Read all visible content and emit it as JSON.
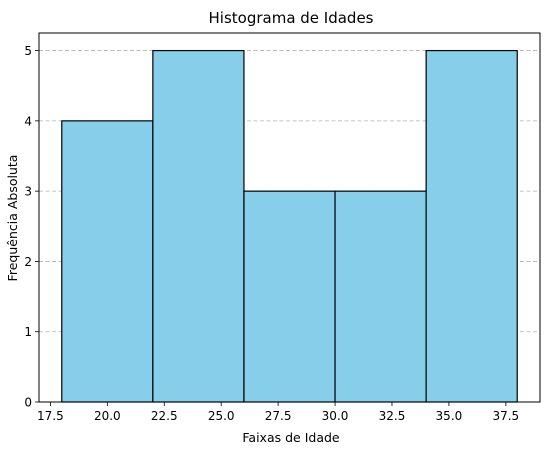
{
  "chart_data": {
    "type": "bar",
    "title": "Histograma de Idades",
    "xlabel": "Faixas de Idade",
    "ylabel": "Frequência Absoluta",
    "bin_edges": [
      18,
      22,
      26,
      30,
      34,
      38
    ],
    "values": [
      4,
      5,
      3,
      3,
      5
    ],
    "xlim": [
      17,
      39
    ],
    "ylim": [
      0,
      5.25
    ],
    "xticks": [
      "17.5",
      "20.0",
      "22.5",
      "25.0",
      "27.5",
      "30.0",
      "32.5",
      "35.0",
      "37.5"
    ],
    "yticks": [
      "0",
      "1",
      "2",
      "3",
      "4",
      "5"
    ],
    "grid": "y-dashed",
    "colors": {
      "bar_fill": "#87ceeb",
      "bar_edge": "#000000",
      "grid": "#b0b0b0"
    }
  }
}
